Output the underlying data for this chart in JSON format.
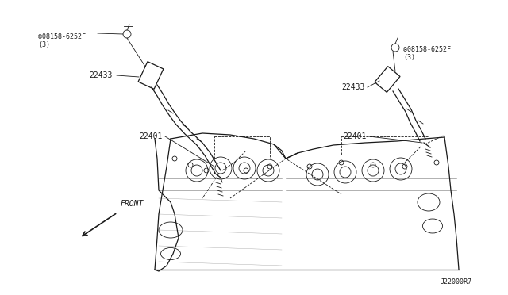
{
  "bg_color": "#ffffff",
  "line_color": "#1a1a1a",
  "figsize": [
    6.4,
    3.72
  ],
  "dpi": 100,
  "labels": {
    "bolt_left": "®08158-6252F\n(3)",
    "coil_left": "22433",
    "plug_left": "22401",
    "bolt_right": "®08158-6252F\n(3)",
    "coil_right": "22433",
    "plug_right": "22401",
    "front": "FRONT",
    "partnum": "J22000R7"
  }
}
